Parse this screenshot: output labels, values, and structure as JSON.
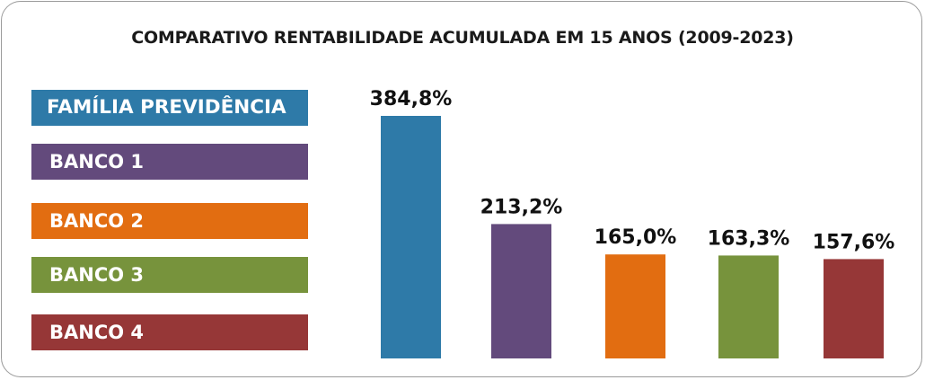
{
  "chart_data": {
    "type": "bar",
    "title": "COMPARATIVO RENTABILIDADE ACUMULADA EM 15 ANOS (2009-2023)",
    "categories": [
      "FAMÍLIA PREVIDÊNCIA",
      "BANCO 1",
      "BANCO 2",
      "BANCO 3",
      "BANCO 4"
    ],
    "values": [
      384.8,
      213.2,
      165.0,
      163.3,
      157.6
    ],
    "data_labels": [
      "384,8%",
      "213,2%",
      "165,0%",
      "163,3%",
      "157,6%"
    ],
    "colors": [
      "#2e7aa8",
      "#634a7c",
      "#e26d11",
      "#77933c",
      "#963737"
    ],
    "ylim": [
      0,
      400
    ],
    "grid": false,
    "legend": "left"
  }
}
